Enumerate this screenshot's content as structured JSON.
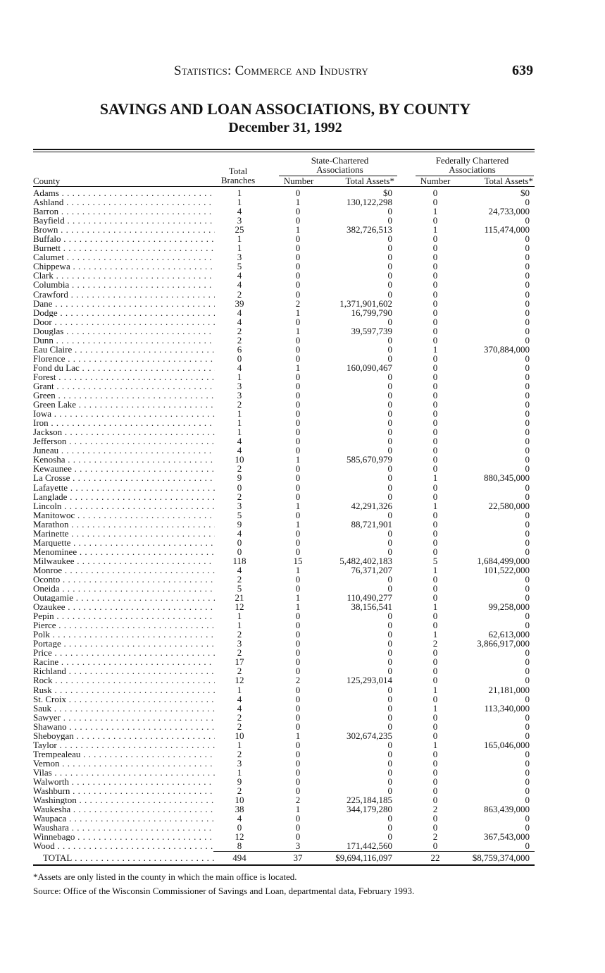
{
  "header": {
    "running_title": "Statistics: Commerce and Industry",
    "page_number": "639"
  },
  "title": "SAVINGS AND LOAN ASSOCIATIONS, BY COUNTY",
  "subtitle": "December 31, 1992",
  "table": {
    "group_headers": {
      "state": "State-Chartered Associations",
      "federal": "Federally Chartered Associations"
    },
    "columns": [
      "County",
      "Total Branches",
      "Number",
      "Total Assets*",
      "Number",
      "Total Assets*"
    ],
    "rows": [
      [
        "Adams",
        "1",
        "0",
        "$0",
        "0",
        "$0"
      ],
      [
        "Ashland",
        "1",
        "1",
        "130,122,298",
        "0",
        "0"
      ],
      [
        "Barron",
        "4",
        "0",
        "0",
        "1",
        "24,733,000"
      ],
      [
        "Bayfield",
        "3",
        "0",
        "0",
        "0",
        "0"
      ],
      [
        "Brown",
        "25",
        "1",
        "382,726,513",
        "1",
        "115,474,000"
      ],
      [
        "Buffalo",
        "1",
        "0",
        "0",
        "0",
        "0"
      ],
      [
        "Burnett",
        "1",
        "0",
        "0",
        "0",
        "0"
      ],
      [
        "Calumet",
        "3",
        "0",
        "0",
        "0",
        "0"
      ],
      [
        "Chippewa",
        "5",
        "0",
        "0",
        "0",
        "0"
      ],
      [
        "Clark",
        "4",
        "0",
        "0",
        "0",
        "0"
      ],
      [
        "Columbia",
        "4",
        "0",
        "0",
        "0",
        "0"
      ],
      [
        "Crawford",
        "2",
        "0",
        "0",
        "0",
        "0"
      ],
      [
        "Dane",
        "39",
        "2",
        "1,371,901,602",
        "0",
        "0"
      ],
      [
        "Dodge",
        "4",
        "1",
        "16,799,790",
        "0",
        "0"
      ],
      [
        "Door",
        "4",
        "0",
        "0",
        "0",
        "0"
      ],
      [
        "Douglas",
        "2",
        "1",
        "39,597,739",
        "0",
        "0"
      ],
      [
        "Dunn",
        "2",
        "0",
        "0",
        "0",
        "0"
      ],
      [
        "Eau Claire",
        "6",
        "0",
        "0",
        "1",
        "370,884,000"
      ],
      [
        "Florence",
        "0",
        "0",
        "0",
        "0",
        "0"
      ],
      [
        "Fond du Lac",
        "4",
        "1",
        "160,090,467",
        "0",
        "0"
      ],
      [
        "Forest",
        "1",
        "0",
        "0",
        "0",
        "0"
      ],
      [
        "Grant",
        "3",
        "0",
        "0",
        "0",
        "0"
      ],
      [
        "Green",
        "3",
        "0",
        "0",
        "0",
        "0"
      ],
      [
        "Green Lake",
        "2",
        "0",
        "0",
        "0",
        "0"
      ],
      [
        "Iowa",
        "1",
        "0",
        "0",
        "0",
        "0"
      ],
      [
        "Iron",
        "1",
        "0",
        "0",
        "0",
        "0"
      ],
      [
        "Jackson",
        "1",
        "0",
        "0",
        "0",
        "0"
      ],
      [
        "Jefferson",
        "4",
        "0",
        "0",
        "0",
        "0"
      ],
      [
        "Juneau",
        "4",
        "0",
        "0",
        "0",
        "0"
      ],
      [
        "Kenosha",
        "10",
        "1",
        "585,670,979",
        "0",
        "0"
      ],
      [
        "Kewaunee",
        "2",
        "0",
        "0",
        "0",
        "0"
      ],
      [
        "La Crosse",
        "9",
        "0",
        "0",
        "1",
        "880,345,000"
      ],
      [
        "Lafayette",
        "0",
        "0",
        "0",
        "0",
        "0"
      ],
      [
        "Langlade",
        "2",
        "0",
        "0",
        "0",
        "0"
      ],
      [
        "Lincoln",
        "3",
        "1",
        "42,291,326",
        "1",
        "22,580,000"
      ],
      [
        "Manitowoc",
        "5",
        "0",
        "0",
        "0",
        "0"
      ],
      [
        "Marathon",
        "9",
        "1",
        "88,721,901",
        "0",
        "0"
      ],
      [
        "Marinette",
        "4",
        "0",
        "0",
        "0",
        "0"
      ],
      [
        "Marquette",
        "0",
        "0",
        "0",
        "0",
        "0"
      ],
      [
        "Menominee",
        "0",
        "0",
        "0",
        "0",
        "0"
      ],
      [
        "Milwaukee",
        "118",
        "15",
        "5,482,402,183",
        "5",
        "1,684,499,000"
      ],
      [
        "Monroe",
        "4",
        "1",
        "76,371,207",
        "1",
        "101,522,000"
      ],
      [
        "Oconto",
        "2",
        "0",
        "0",
        "0",
        "0"
      ],
      [
        "Oneida",
        "5",
        "0",
        "0",
        "0",
        "0"
      ],
      [
        "Outagamie",
        "21",
        "1",
        "110,490,277",
        "0",
        "0"
      ],
      [
        "Ozaukee",
        "12",
        "1",
        "38,156,541",
        "1",
        "99,258,000"
      ],
      [
        "Pepin",
        "1",
        "0",
        "0",
        "0",
        "0"
      ],
      [
        "Pierce",
        "1",
        "0",
        "0",
        "0",
        "0"
      ],
      [
        "Polk",
        "2",
        "0",
        "0",
        "1",
        "62,613,000"
      ],
      [
        "Portage",
        "3",
        "0",
        "0",
        "2",
        "3,866,917,000"
      ],
      [
        "Price",
        "2",
        "0",
        "0",
        "0",
        "0"
      ],
      [
        "Racine",
        "17",
        "0",
        "0",
        "0",
        "0"
      ],
      [
        "Richland",
        "2",
        "0",
        "0",
        "0",
        "0"
      ],
      [
        "Rock",
        "12",
        "2",
        "125,293,014",
        "0",
        "0"
      ],
      [
        "Rusk",
        "1",
        "0",
        "0",
        "1",
        "21,181,000"
      ],
      [
        "St. Croix",
        "4",
        "0",
        "0",
        "0",
        "0"
      ],
      [
        "Sauk",
        "4",
        "0",
        "0",
        "1",
        "113,340,000"
      ],
      [
        "Sawyer",
        "2",
        "0",
        "0",
        "0",
        "0"
      ],
      [
        "Shawano",
        "2",
        "0",
        "0",
        "0",
        "0"
      ],
      [
        "Sheboygan",
        "10",
        "1",
        "302,674,235",
        "0",
        "0"
      ],
      [
        "Taylor",
        "1",
        "0",
        "0",
        "1",
        "165,046,000"
      ],
      [
        "Trempealeau",
        "2",
        "0",
        "0",
        "0",
        "0"
      ],
      [
        "Vernon",
        "3",
        "0",
        "0",
        "0",
        "0"
      ],
      [
        "Vilas",
        "1",
        "0",
        "0",
        "0",
        "0"
      ],
      [
        "Walworth",
        "9",
        "0",
        "0",
        "0",
        "0"
      ],
      [
        "Washburn",
        "2",
        "0",
        "0",
        "0",
        "0"
      ],
      [
        "Washington",
        "10",
        "2",
        "225,184,185",
        "0",
        "0"
      ],
      [
        "Waukesha",
        "38",
        "1",
        "344,179,280",
        "2",
        "863,439,000"
      ],
      [
        "Waupaca",
        "4",
        "0",
        "0",
        "0",
        "0"
      ],
      [
        "Waushara",
        "0",
        "0",
        "0",
        "0",
        "0"
      ],
      [
        "Winnebago",
        "12",
        "0",
        "0",
        "2",
        "367,543,000"
      ],
      [
        "Wood",
        "8",
        "3",
        "171,442,560",
        "0",
        "0"
      ]
    ],
    "total": [
      "TOTAL",
      "494",
      "37",
      "$9,694,116,097",
      "22",
      "$8,759,374,000"
    ]
  },
  "footnote": "*Assets are only listed in the county in which the main office is located.",
  "source": "Source: Office of the Wisconsin Commissioner of Savings and Loan, departmental data, February 1993."
}
